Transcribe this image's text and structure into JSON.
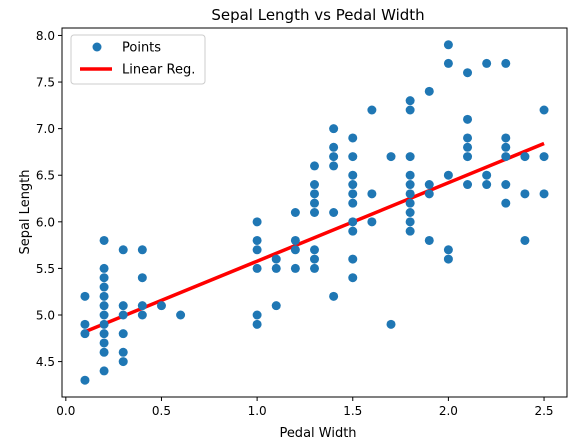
{
  "chart_data": {
    "type": "scatter",
    "title": "Sepal Length vs Pedal Width",
    "xlabel": "Pedal Width",
    "ylabel": "Sepal Length",
    "xlim": [
      -0.02,
      2.62
    ],
    "ylim": [
      4.12,
      8.08
    ],
    "xticks": [
      0.0,
      0.5,
      1.0,
      1.5,
      2.0,
      2.5
    ],
    "xtick_labels": [
      "0.0",
      "0.5",
      "1.0",
      "1.5",
      "2.0",
      "2.5"
    ],
    "yticks": [
      4.5,
      5.0,
      5.5,
      6.0,
      6.5,
      7.0,
      7.5,
      8.0
    ],
    "ytick_labels": [
      "4.5",
      "5.0",
      "5.5",
      "6.0",
      "6.5",
      "7.0",
      "7.5",
      "8.0"
    ],
    "grid": false,
    "legend_position": "top-left",
    "series": [
      {
        "name": "Points",
        "kind": "scatter",
        "color": "#1f77b4",
        "points": [
          [
            0.1,
            4.3
          ],
          [
            0.1,
            4.8
          ],
          [
            0.1,
            4.9
          ],
          [
            0.1,
            5.2
          ],
          [
            0.2,
            4.4
          ],
          [
            0.2,
            4.6
          ],
          [
            0.2,
            4.7
          ],
          [
            0.2,
            4.8
          ],
          [
            0.2,
            4.9
          ],
          [
            0.2,
            5.0
          ],
          [
            0.2,
            5.1
          ],
          [
            0.2,
            5.2
          ],
          [
            0.2,
            5.3
          ],
          [
            0.2,
            5.4
          ],
          [
            0.2,
            5.5
          ],
          [
            0.2,
            5.8
          ],
          [
            0.3,
            4.5
          ],
          [
            0.3,
            4.6
          ],
          [
            0.3,
            4.8
          ],
          [
            0.3,
            5.0
          ],
          [
            0.3,
            5.1
          ],
          [
            0.3,
            5.7
          ],
          [
            0.4,
            5.0
          ],
          [
            0.4,
            5.1
          ],
          [
            0.4,
            5.4
          ],
          [
            0.4,
            5.7
          ],
          [
            0.5,
            5.1
          ],
          [
            0.6,
            5.0
          ],
          [
            1.0,
            4.9
          ],
          [
            1.0,
            5.0
          ],
          [
            1.0,
            5.5
          ],
          [
            1.0,
            5.7
          ],
          [
            1.0,
            5.8
          ],
          [
            1.0,
            6.0
          ],
          [
            1.1,
            5.1
          ],
          [
            1.1,
            5.5
          ],
          [
            1.1,
            5.6
          ],
          [
            1.2,
            5.5
          ],
          [
            1.2,
            5.7
          ],
          [
            1.2,
            5.8
          ],
          [
            1.2,
            6.1
          ],
          [
            1.3,
            5.5
          ],
          [
            1.3,
            5.6
          ],
          [
            1.3,
            5.7
          ],
          [
            1.3,
            6.1
          ],
          [
            1.3,
            6.2
          ],
          [
            1.3,
            6.3
          ],
          [
            1.3,
            6.4
          ],
          [
            1.3,
            6.6
          ],
          [
            1.4,
            5.2
          ],
          [
            1.4,
            6.1
          ],
          [
            1.4,
            6.6
          ],
          [
            1.4,
            6.7
          ],
          [
            1.4,
            6.8
          ],
          [
            1.4,
            7.0
          ],
          [
            1.5,
            5.4
          ],
          [
            1.5,
            5.6
          ],
          [
            1.5,
            5.9
          ],
          [
            1.5,
            6.0
          ],
          [
            1.5,
            6.2
          ],
          [
            1.5,
            6.3
          ],
          [
            1.5,
            6.4
          ],
          [
            1.5,
            6.5
          ],
          [
            1.5,
            6.7
          ],
          [
            1.5,
            6.9
          ],
          [
            1.6,
            6.0
          ],
          [
            1.6,
            6.3
          ],
          [
            1.6,
            7.2
          ],
          [
            1.7,
            4.9
          ],
          [
            1.7,
            6.7
          ],
          [
            1.8,
            5.9
          ],
          [
            1.8,
            6.0
          ],
          [
            1.8,
            6.1
          ],
          [
            1.8,
            6.2
          ],
          [
            1.8,
            6.3
          ],
          [
            1.8,
            6.4
          ],
          [
            1.8,
            6.5
          ],
          [
            1.8,
            6.7
          ],
          [
            1.8,
            7.2
          ],
          [
            1.8,
            7.3
          ],
          [
            1.9,
            5.8
          ],
          [
            1.9,
            6.3
          ],
          [
            1.9,
            6.4
          ],
          [
            1.9,
            7.4
          ],
          [
            2.0,
            5.6
          ],
          [
            2.0,
            5.7
          ],
          [
            2.0,
            6.5
          ],
          [
            2.0,
            7.7
          ],
          [
            2.0,
            7.9
          ],
          [
            2.1,
            6.4
          ],
          [
            2.1,
            6.7
          ],
          [
            2.1,
            6.8
          ],
          [
            2.1,
            6.9
          ],
          [
            2.1,
            7.1
          ],
          [
            2.1,
            7.6
          ],
          [
            2.2,
            6.4
          ],
          [
            2.2,
            6.5
          ],
          [
            2.2,
            7.7
          ],
          [
            2.3,
            6.2
          ],
          [
            2.3,
            6.4
          ],
          [
            2.3,
            6.7
          ],
          [
            2.3,
            6.8
          ],
          [
            2.3,
            6.9
          ],
          [
            2.3,
            7.7
          ],
          [
            2.4,
            5.8
          ],
          [
            2.4,
            6.3
          ],
          [
            2.4,
            6.7
          ],
          [
            2.5,
            6.3
          ],
          [
            2.5,
            6.7
          ],
          [
            2.5,
            7.2
          ]
        ]
      },
      {
        "name": "Linear Reg.",
        "kind": "line",
        "color": "#ff0000",
        "points": [
          [
            0.1,
            4.82
          ],
          [
            2.5,
            6.84
          ]
        ]
      }
    ]
  }
}
